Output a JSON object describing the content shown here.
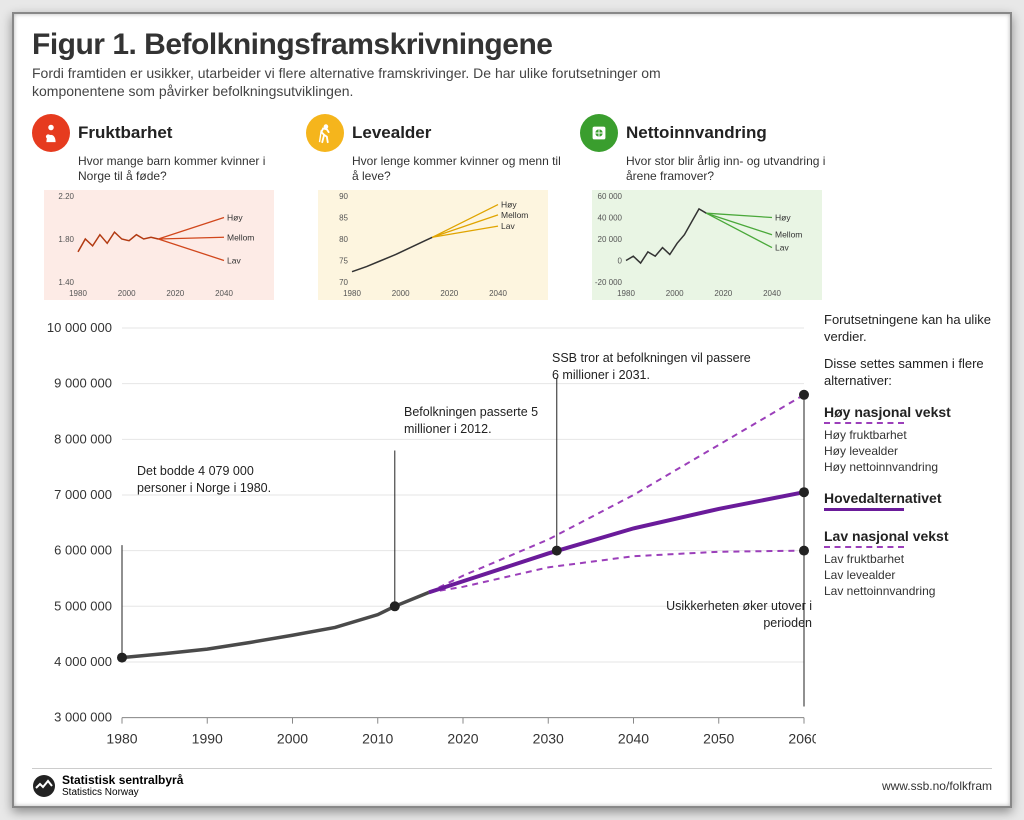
{
  "title": "Figur 1. Befolkningsframskrivningene",
  "subtitle": "Fordi framtiden er usikker, utarbeider vi flere alternative framskrivinger. De har ulike forutsetninger om komponentene som påvirker befolkningsutviklingen.",
  "cards": {
    "fert": {
      "title": "Fruktbarhet",
      "subtitle": "Hvor mange barn kommer kvinner i Norge til å føde?",
      "icon_bg": "#e63b1f",
      "mini": {
        "bg": "#fdebe6",
        "x_ticks": [
          "1980",
          "2000",
          "2020",
          "2040"
        ],
        "y_ticks": [
          "1.40",
          "1.80",
          "2.20"
        ],
        "hist_color": "#b23a12",
        "fan_color": "#d1471c",
        "labels": [
          "Høy",
          "Mellom",
          "Lav"
        ],
        "hist": [
          [
            0,
            0.35
          ],
          [
            0.05,
            0.5
          ],
          [
            0.1,
            0.42
          ],
          [
            0.15,
            0.55
          ],
          [
            0.2,
            0.45
          ],
          [
            0.25,
            0.58
          ],
          [
            0.3,
            0.5
          ],
          [
            0.35,
            0.48
          ],
          [
            0.4,
            0.55
          ],
          [
            0.45,
            0.5
          ],
          [
            0.5,
            0.52
          ],
          [
            0.55,
            0.5
          ]
        ],
        "fan_end": [
          0.75,
          0.52,
          0.25
        ]
      }
    },
    "life": {
      "title": "Levealder",
      "subtitle": "Hvor lenge kommer kvinner og menn til å leve?",
      "icon_bg": "#f5b51c",
      "mini": {
        "bg": "#fdf5df",
        "x_ticks": [
          "1980",
          "2000",
          "2020",
          "2040"
        ],
        "y_ticks": [
          "70",
          "75",
          "80",
          "85",
          "90"
        ],
        "hist_color": "#333333",
        "fan_color": "#e0a400",
        "labels": [
          "Høy",
          "Mellom",
          "Lav"
        ],
        "hist": [
          [
            0,
            0.12
          ],
          [
            0.1,
            0.18
          ],
          [
            0.2,
            0.25
          ],
          [
            0.3,
            0.32
          ],
          [
            0.4,
            0.4
          ],
          [
            0.5,
            0.48
          ],
          [
            0.55,
            0.52
          ]
        ],
        "fan_end": [
          0.9,
          0.78,
          0.65
        ]
      }
    },
    "migr": {
      "title": "Nettoinnvandring",
      "subtitle": "Hvor stor blir årlig inn- og utvandring i årene framover?",
      "icon_bg": "#3a9e2e",
      "mini": {
        "bg": "#e9f5e4",
        "x_ticks": [
          "1980",
          "2000",
          "2020",
          "2040"
        ],
        "y_ticks": [
          "-20 000",
          "0",
          "20 000",
          "40 000",
          "60 000"
        ],
        "hist_color": "#333333",
        "fan_color": "#4aa83a",
        "labels": [
          "Høy",
          "Mellom",
          "Lav"
        ],
        "hist": [
          [
            0,
            0.25
          ],
          [
            0.05,
            0.3
          ],
          [
            0.1,
            0.22
          ],
          [
            0.15,
            0.35
          ],
          [
            0.2,
            0.3
          ],
          [
            0.25,
            0.4
          ],
          [
            0.3,
            0.32
          ],
          [
            0.35,
            0.45
          ],
          [
            0.4,
            0.55
          ],
          [
            0.45,
            0.7
          ],
          [
            0.5,
            0.85
          ],
          [
            0.55,
            0.8
          ]
        ],
        "fan_end": [
          0.75,
          0.55,
          0.4
        ]
      }
    }
  },
  "sidebar": {
    "intro1": "Forutsetningene kan ha ulike verdier.",
    "intro2": "Disse settes sammen i flere alternativer:",
    "legend": [
      {
        "title": "Høy nasjonal vekst",
        "desc": "Høy fruktbarhet\nHøy levealder\nHøy nettoinnvandring",
        "style": "dash"
      },
      {
        "title": "Hovedalternativet",
        "desc": "",
        "style": "solid"
      },
      {
        "title": "Lav nasjonal vekst",
        "desc": "Lav fruktbarhet\nLav levealder\nLav nettoinnvandring",
        "style": "dash"
      }
    ]
  },
  "main_chart": {
    "x_ticks": [
      1980,
      1990,
      2000,
      2010,
      2020,
      2030,
      2040,
      2050,
      2060
    ],
    "y_ticks": [
      3000000,
      4000000,
      5000000,
      6000000,
      7000000,
      8000000,
      9000000,
      10000000
    ],
    "y_labels": [
      "3 000 000",
      "4 000 000",
      "5 000 000",
      "6 000 000",
      "7 000 000",
      "8 000 000",
      "9 000 000",
      "10 000 000"
    ],
    "hist_color": "#4a4a4a",
    "purple": "#6a1b9a",
    "purple_dash": "#9b3fba",
    "grid_color": "#e6e6e6",
    "hist": [
      [
        1980,
        4079000
      ],
      [
        1985,
        4150000
      ],
      [
        1990,
        4230000
      ],
      [
        1995,
        4350000
      ],
      [
        2000,
        4480000
      ],
      [
        2005,
        4620000
      ],
      [
        2010,
        4850000
      ],
      [
        2012,
        5000000
      ],
      [
        2016,
        5250000
      ]
    ],
    "main": [
      [
        2016,
        5250000
      ],
      [
        2020,
        5450000
      ],
      [
        2030,
        5950000
      ],
      [
        2040,
        6400000
      ],
      [
        2050,
        6750000
      ],
      [
        2060,
        7050000
      ]
    ],
    "high": [
      [
        2016,
        5250000
      ],
      [
        2020,
        5550000
      ],
      [
        2030,
        6200000
      ],
      [
        2040,
        7000000
      ],
      [
        2050,
        7900000
      ],
      [
        2060,
        8800000
      ]
    ],
    "low": [
      [
        2016,
        5250000
      ],
      [
        2020,
        5350000
      ],
      [
        2030,
        5700000
      ],
      [
        2040,
        5900000
      ],
      [
        2050,
        5980000
      ],
      [
        2060,
        6000000
      ]
    ],
    "dots": [
      [
        1980,
        4079000
      ],
      [
        2012,
        5000000
      ],
      [
        2031,
        6000000
      ],
      [
        2060,
        8800000
      ],
      [
        2060,
        7050000
      ],
      [
        2060,
        6000000
      ]
    ],
    "annots": {
      "a1": "Det bodde 4 079 000 personer i Norge i 1980.",
      "a2": "Befolkningen passerte\n5 millioner i 2012.",
      "a3": "SSB tror at befolkningen vil passere 6 millioner i 2031.",
      "a4": "Usikkerheten øker utover i perioden"
    }
  },
  "footer": {
    "org": "Statistisk sentralbyrå",
    "org_en": "Statistics Norway",
    "url": "www.ssb.no/folkfram"
  }
}
